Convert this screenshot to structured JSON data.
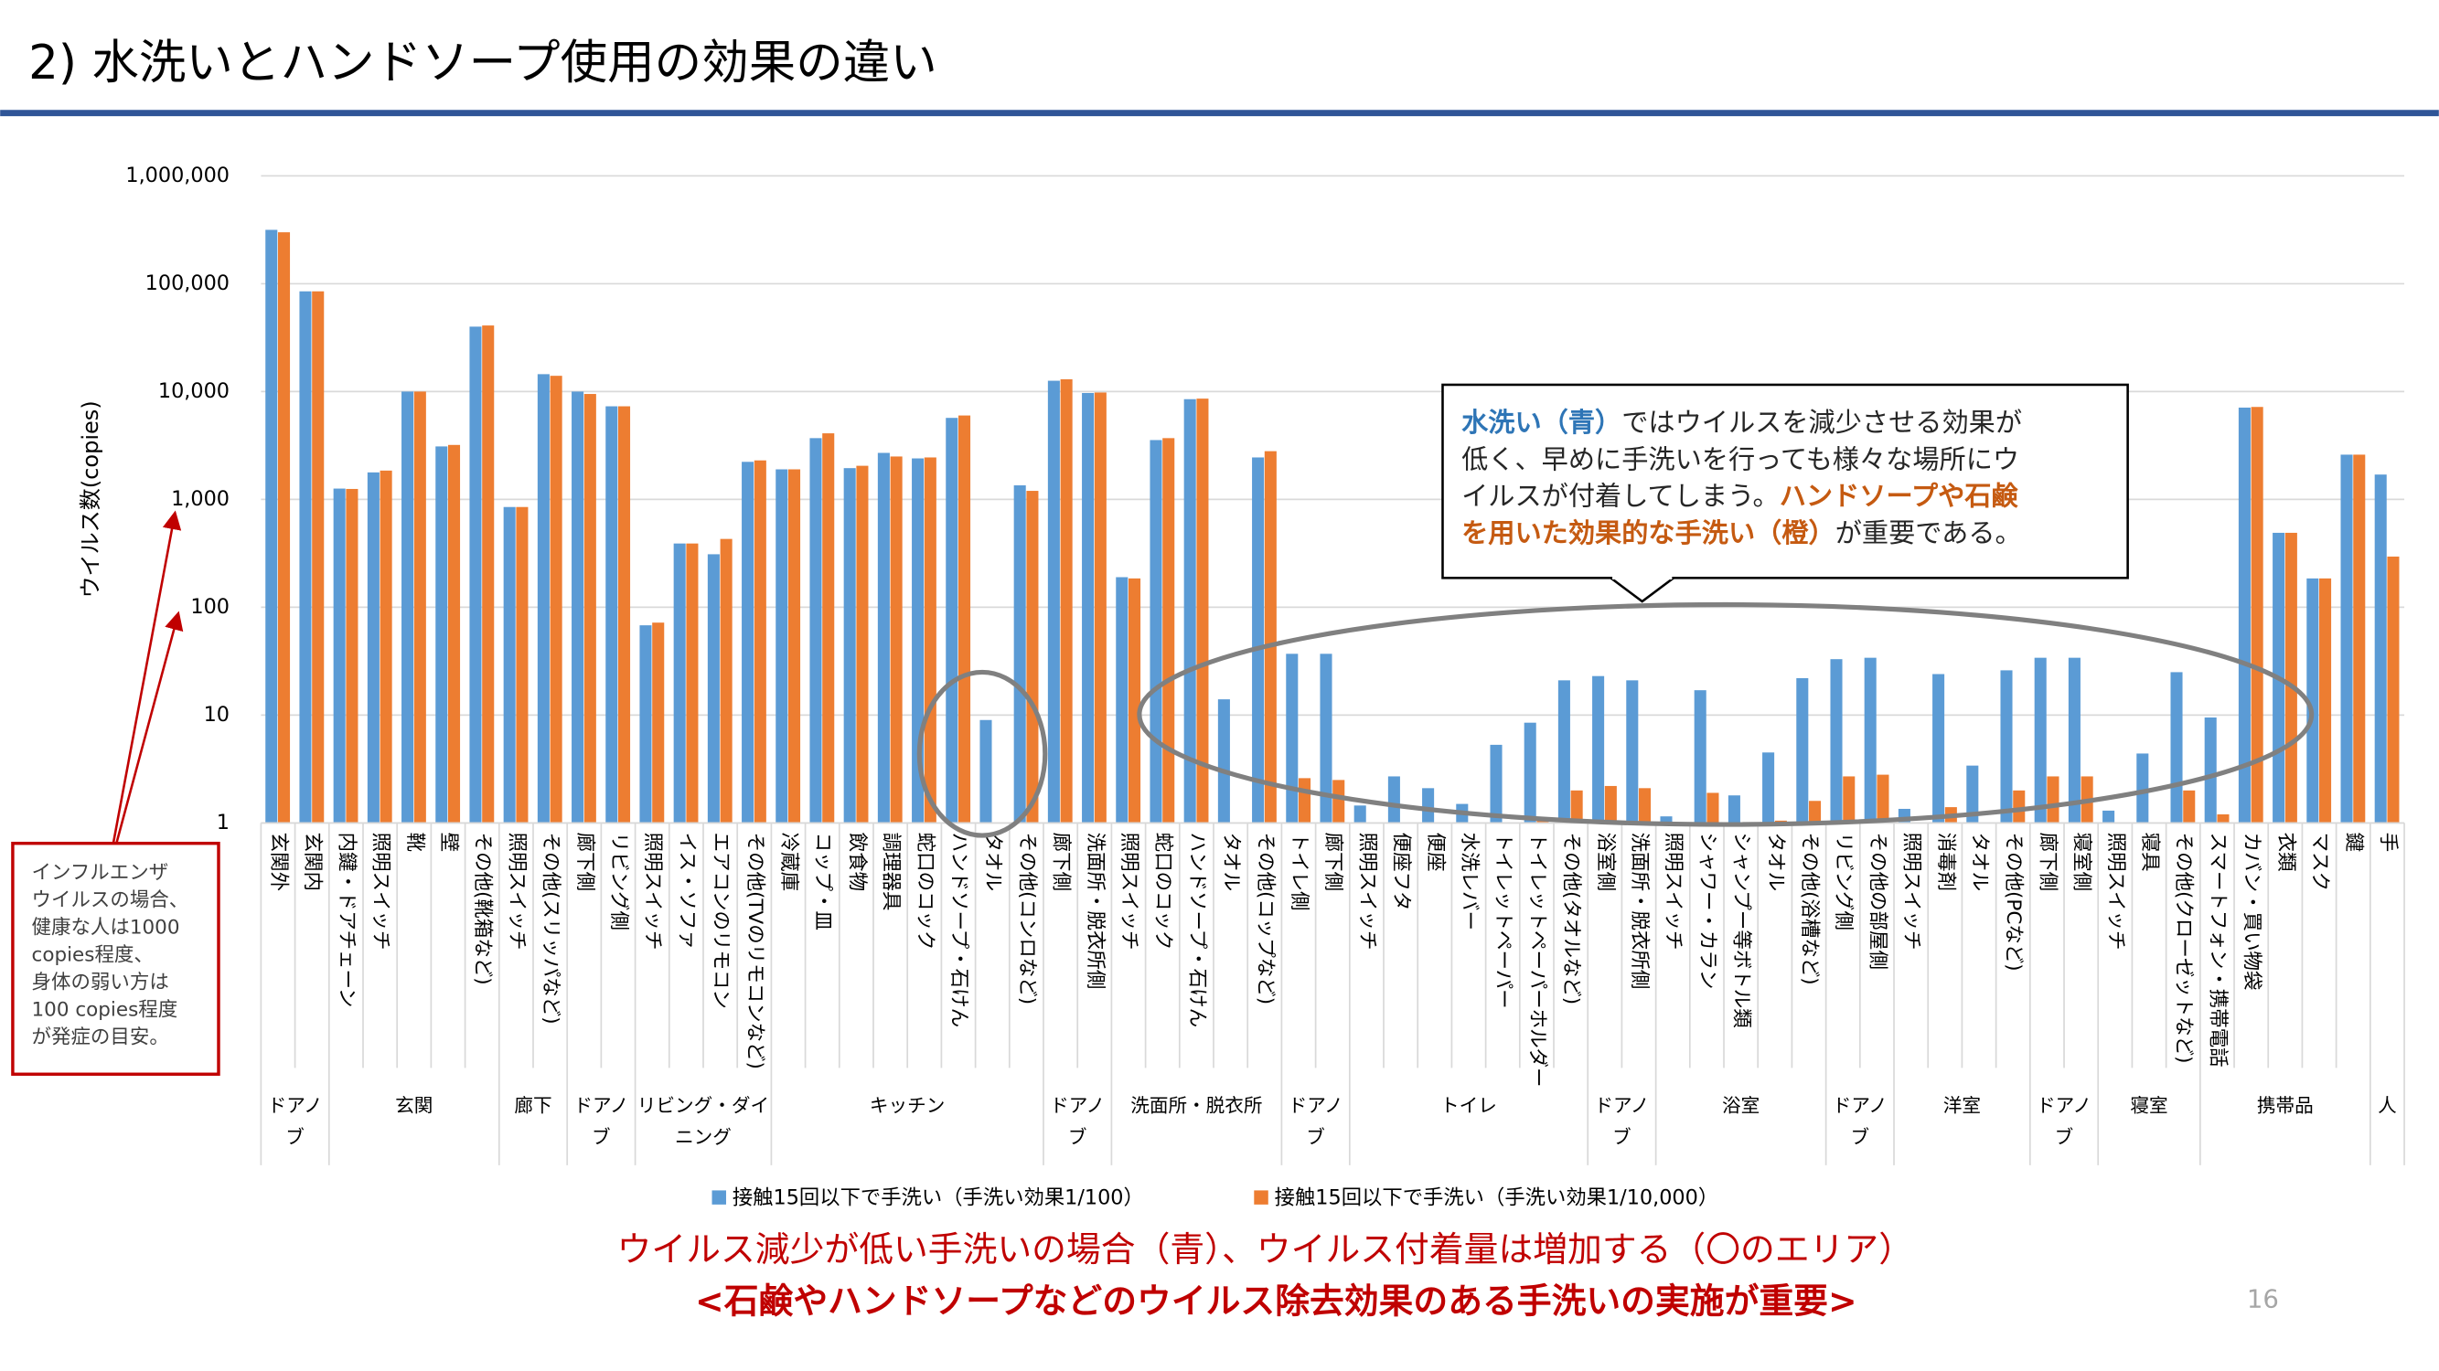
{
  "title": "2)  水洗いとハンドソープ使用の効果の違い",
  "chart_data": {
    "type": "bar",
    "y_label": "ウイルス数(copies)",
    "log_scale": true,
    "grid": true,
    "ylim": [
      1,
      1000000
    ],
    "yticks": [
      1,
      10,
      100,
      {
        "value": 1000,
        "label": "1,000"
      },
      {
        "value": 10000,
        "label": "10,000"
      },
      {
        "value": 100000,
        "label": "100,000"
      },
      {
        "value": 1000000,
        "label": "1,000,000"
      }
    ],
    "groups": [
      {
        "name": "ドアノブ",
        "categories": [
          "玄関外",
          "玄関内"
        ]
      },
      {
        "name": "玄関",
        "categories": [
          "内鍵・ドアチェーン",
          "照明スイッチ",
          "靴",
          "壁",
          "その他(靴箱など)"
        ]
      },
      {
        "name": "廊下",
        "categories": [
          "照明スイッチ",
          "その他(スリッパなど)"
        ]
      },
      {
        "name": "ドアノブ",
        "categories": [
          "廊下側",
          "リビング側"
        ]
      },
      {
        "name": "リビング・ダイニング",
        "categories": [
          "照明スイッチ",
          "イス・ソファ",
          "エアコンのリモコン",
          "その他(TVのリモコンなど)"
        ]
      },
      {
        "name": "キッチン",
        "categories": [
          "冷蔵庫",
          "コップ・皿",
          "飲食物",
          "調理器具",
          "蛇口のコック",
          "ハンドソープ・石けん",
          "タオル",
          "その他(コンロなど)"
        ]
      },
      {
        "name": "ドアノブ",
        "categories": [
          "廊下側",
          "洗面所・脱衣所側"
        ]
      },
      {
        "name": "洗面所・脱衣所",
        "categories": [
          "照明スイッチ",
          "蛇口のコック",
          "ハンドソープ・石けん",
          "タオル",
          "その他(コップなど)"
        ]
      },
      {
        "name": "ドアノブ",
        "categories": [
          "トイレ側",
          "廊下側"
        ]
      },
      {
        "name": "トイレ",
        "categories": [
          "照明スイッチ",
          "便座フタ",
          "便座",
          "水洗レバー",
          "トイレットペーパー",
          "トイレットペーパーホルダー",
          "その他(タオルなど)"
        ]
      },
      {
        "name": "ドアノブ",
        "categories": [
          "浴室側",
          "洗面所・脱衣所側"
        ]
      },
      {
        "name": "浴室",
        "categories": [
          "照明スイッチ",
          "シャワー・カラン",
          "シャンプー等ボトル類",
          "タオル",
          "その他(浴槽など)"
        ]
      },
      {
        "name": "ドアノブ",
        "categories": [
          "リビング側",
          "その他の部屋側"
        ]
      },
      {
        "name": "洋室",
        "categories": [
          "照明スイッチ",
          "消毒剤",
          "タオル",
          "その他(PCなど)"
        ]
      },
      {
        "name": "ドアノブ",
        "categories": [
          "廊下側",
          "寝室側"
        ]
      },
      {
        "name": "寝室",
        "categories": [
          "照明スイッチ",
          "寝具",
          "その他(クローゼットなど)"
        ]
      },
      {
        "name": "携帯品",
        "categories": [
          "スマートフォン・携帯電話",
          "カバン・買い物袋",
          "衣類",
          "マスク",
          "鍵"
        ]
      },
      {
        "name": "人",
        "categories": [
          "手"
        ]
      }
    ],
    "series": [
      {
        "name": "接触15回以下で手洗い（手洗い効果1/100）",
        "color": "#5b9bd5",
        "values": [
          316000,
          85000,
          1260,
          1780,
          10000,
          3100,
          40000,
          850,
          14500,
          10000,
          7300,
          68,
          390,
          310,
          2230,
          1900,
          3700,
          1950,
          2700,
          2400,
          5700,
          9,
          1350,
          12600,
          9700,
          190,
          3550,
          8500,
          14,
          2450,
          37,
          37,
          1.45,
          2.7,
          2.1,
          1.5,
          5.3,
          8.5,
          21,
          23,
          21,
          1.15,
          17,
          1.8,
          4.5,
          22,
          33,
          34,
          1.35,
          24,
          3.4,
          26,
          34,
          34,
          1.3,
          4.4,
          25,
          9.5,
          7100,
          490,
          185,
          2600,
          1700
        ]
      },
      {
        "name": "接触15回以下で手洗い（手洗い効果1/10,000）",
        "color": "#ed7d31",
        "values": [
          300000,
          85000,
          1250,
          1850,
          10000,
          3200,
          41000,
          850,
          14000,
          9500,
          7300,
          72,
          390,
          430,
          2300,
          1900,
          4100,
          2050,
          2500,
          2450,
          6000,
          null,
          1200,
          13000,
          9800,
          185,
          3700,
          8600,
          null,
          2800,
          2.6,
          2.5,
          null,
          null,
          null,
          null,
          null,
          1.1,
          2.0,
          2.2,
          2.1,
          null,
          1.9,
          null,
          1.05,
          1.6,
          2.7,
          2.8,
          null,
          1.4,
          null,
          2.0,
          2.7,
          2.7,
          null,
          null,
          2.0,
          1.2,
          7200,
          490,
          185,
          2600,
          295
        ]
      }
    ]
  },
  "callout": {
    "lines": [
      [
        {
          "text": "水洗い（青）",
          "color": "#2e75b6"
        },
        {
          "text": "ではウイルスを減少させる効果が",
          "color": "#262626"
        }
      ],
      [
        {
          "text": "低く、早めに手洗いを行っても様々な場所にウ",
          "color": "#262626"
        }
      ],
      [
        {
          "text": "イルスが付着してしまう。",
          "color": "#262626"
        },
        {
          "text": "ハンドソープや石鹸",
          "color": "#c55a11"
        }
      ],
      [
        {
          "text": "を用いた効果的な手洗い（橙）",
          "color": "#c55a11"
        },
        {
          "text": "が重要である。",
          "color": "#262626"
        }
      ]
    ]
  },
  "note": [
    "インフルエンザ",
    "ウイルスの場合、",
    "健康な人は1000",
    "copies程度、",
    "身体の弱い方は",
    "100 copies程度",
    "が発症の目安。"
  ],
  "conclusion": [
    "ウイルス減少が低い手洗いの場合（青）、ウイルス付着量は増加する（〇のエリア）",
    "<石鹸やハンドソープなどのウイルス除去効果のある手洗いの実施が重要>"
  ],
  "page_number": "16"
}
